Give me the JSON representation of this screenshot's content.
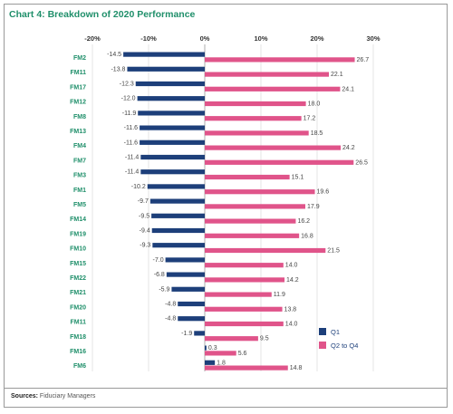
{
  "page": {
    "title": "Chart 4: Breakdown of 2020 Performance",
    "source_prefix": "Sources:",
    "source_text": " Fiduciary Managers"
  },
  "chart_data": {
    "type": "bar",
    "orientation": "horizontal",
    "title": "Chart 4: Breakdown of 2020 Performance",
    "categories": [
      "FM2",
      "FM11",
      "FM17",
      "FM12",
      "FM8",
      "FM13",
      "FM4",
      "FM7",
      "FM3",
      "FM1",
      "FM5",
      "FM14",
      "FM19",
      "FM10",
      "FM15",
      "FM22",
      "FM21",
      "FM20",
      "FM11",
      "FM18",
      "FM16",
      "FM6"
    ],
    "series": [
      {
        "name": "Q1",
        "color": "#1d3f7a",
        "values": [
          -14.5,
          -13.8,
          -12.3,
          -12.0,
          -11.9,
          -11.6,
          -11.6,
          -11.4,
          -11.4,
          -10.2,
          -9.7,
          -9.5,
          -9.4,
          -9.3,
          -7.0,
          -6.8,
          -5.9,
          -4.8,
          -4.8,
          -1.9,
          0.3,
          1.8
        ]
      },
      {
        "name": "Q2 to Q4",
        "color": "#e0548a",
        "values": [
          26.7,
          22.1,
          24.1,
          18.0,
          17.2,
          18.5,
          24.2,
          26.5,
          15.1,
          19.6,
          17.9,
          16.2,
          16.8,
          21.5,
          14.0,
          14.2,
          11.9,
          13.8,
          14.0,
          9.5,
          5.6,
          14.8
        ]
      }
    ],
    "x_ticks": [
      "-20%",
      "-10%",
      "0%",
      "10%",
      "20%",
      "30%"
    ],
    "xlim": [
      -20,
      30
    ],
    "grid": true,
    "legend_position": "bottom-right"
  }
}
